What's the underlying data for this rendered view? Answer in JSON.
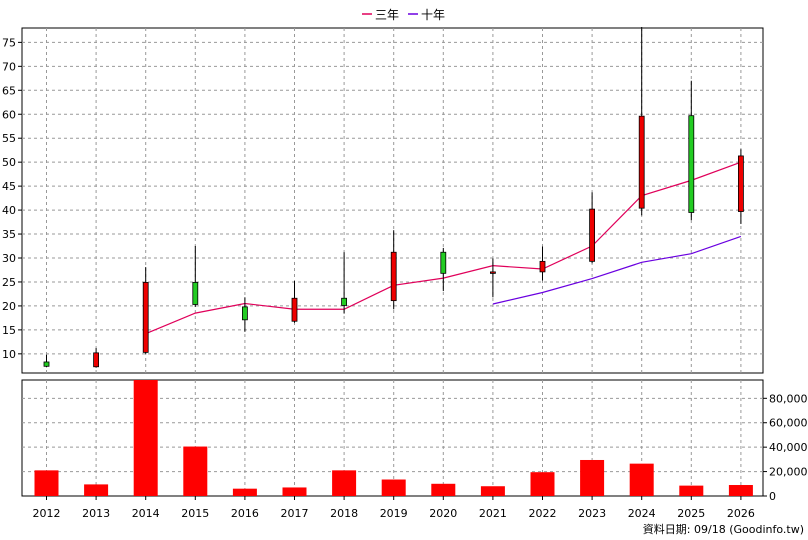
{
  "chart_data": {
    "type": "candlestick+line+bar",
    "legend": [
      {
        "name": "三年",
        "color": "#e0005a"
      },
      {
        "name": "十年",
        "color": "#6a00e0"
      }
    ],
    "legend_position": "top-center",
    "years": [
      "2012",
      "2013",
      "2014",
      "2015",
      "2016",
      "2017",
      "2018",
      "2019",
      "2020",
      "2021",
      "2022",
      "2023",
      "2024",
      "2025",
      "2026"
    ],
    "price_axis": {
      "range": [
        6,
        78
      ],
      "ticks": [
        10,
        15,
        20,
        25,
        30,
        35,
        40,
        45,
        50,
        55,
        60,
        65,
        70,
        75
      ],
      "grid": true
    },
    "candles": [
      {
        "year": "2012",
        "open": 7.4,
        "close": 8.3,
        "high": 9.8,
        "low": 7.2
      },
      {
        "year": "2013",
        "open": 10.2,
        "close": 7.3,
        "high": 11.2,
        "low": 7.1
      },
      {
        "year": "2014",
        "open": 24.9,
        "close": 10.3,
        "high": 28.1,
        "low": 10.0
      },
      {
        "year": "2015",
        "open": 20.3,
        "close": 24.9,
        "high": 32.5,
        "low": 19.8
      },
      {
        "year": "2016",
        "open": 17.1,
        "close": 19.8,
        "high": 21.8,
        "low": 14.6
      },
      {
        "year": "2017",
        "open": 21.6,
        "close": 16.8,
        "high": 25.2,
        "low": 16.5
      },
      {
        "year": "2018",
        "open": 20.1,
        "close": 21.6,
        "high": 31.2,
        "low": 18.4
      },
      {
        "year": "2019",
        "open": 31.2,
        "close": 21.1,
        "high": 35.8,
        "low": 19.3
      },
      {
        "year": "2020",
        "open": 26.8,
        "close": 31.2,
        "high": 32.1,
        "low": 23.1
      },
      {
        "year": "2021",
        "open": 27.1,
        "close": 26.8,
        "high": 29.9,
        "low": 21.8
      },
      {
        "year": "2022",
        "open": 29.3,
        "close": 27.1,
        "high": 32.4,
        "low": 25.3
      },
      {
        "year": "2023",
        "open": 40.2,
        "close": 29.3,
        "high": 43.7,
        "low": 28.9
      },
      {
        "year": "2024",
        "open": 59.6,
        "close": 40.4,
        "high": 78.2,
        "low": 38.9
      },
      {
        "year": "2025",
        "open": 39.5,
        "close": 59.7,
        "high": 67.0,
        "low": 37.9
      },
      {
        "year": "2026",
        "open": 51.3,
        "close": 39.7,
        "high": 52.7,
        "low": 37.1
      }
    ],
    "series": [
      {
        "name": "三年",
        "color": "#e0005a",
        "points": [
          [
            "2014",
            14.2
          ],
          [
            "2015",
            18.5
          ],
          [
            "2016",
            20.5
          ],
          [
            "2017",
            19.3
          ],
          [
            "2018",
            19.3
          ],
          [
            "2019",
            24.3
          ],
          [
            "2020",
            25.8
          ],
          [
            "2021",
            28.4
          ],
          [
            "2022",
            27.7
          ],
          [
            "2023",
            32.5
          ],
          [
            "2024",
            43.0
          ],
          [
            "2025",
            46.2
          ],
          [
            "2026",
            50.0
          ]
        ]
      },
      {
        "name": "十年",
        "color": "#6a00e0",
        "points": [
          [
            "2021",
            20.4
          ],
          [
            "2022",
            22.8
          ],
          [
            "2023",
            25.7
          ],
          [
            "2024",
            29.1
          ],
          [
            "2025",
            30.9
          ],
          [
            "2026",
            34.5
          ]
        ]
      }
    ],
    "volume_axis": {
      "range": [
        0,
        95000
      ],
      "ticks": [
        0,
        20000,
        40000,
        60000,
        80000
      ],
      "tick_labels": [
        "0",
        "20,000",
        "40,000",
        "60,000",
        "80,000"
      ],
      "grid": true
    },
    "volume": [
      21000,
      9500,
      95000,
      40500,
      6000,
      7000,
      21000,
      13500,
      10000,
      8000,
      19500,
      29500,
      26500,
      8500,
      9000
    ],
    "credit": "資料日期: 09/18  (Goodinfo.tw)"
  }
}
